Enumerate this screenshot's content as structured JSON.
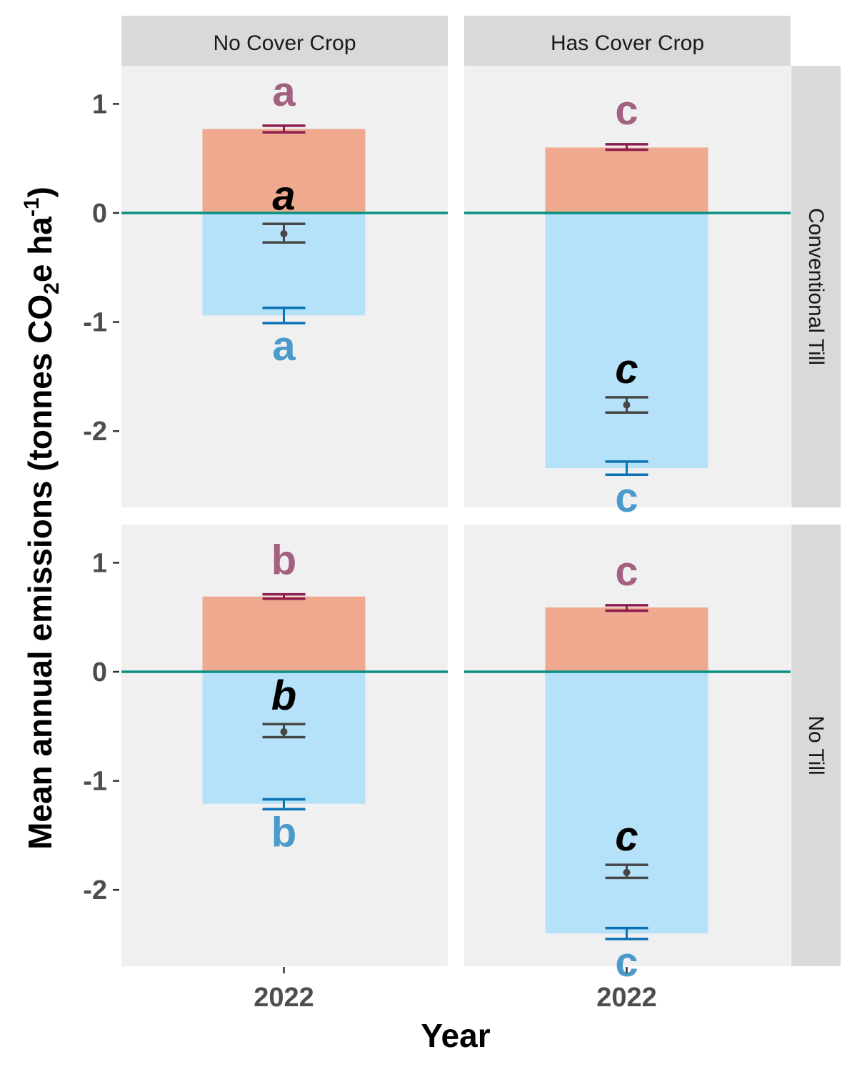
{
  "chart_data": {
    "type": "bar",
    "xlabel": "Year",
    "ylabel_parts": [
      "Mean annual emissions (tonnes CO",
      "2",
      "e ha",
      "-1",
      ")"
    ],
    "ylim": [
      -2.7,
      1.35
    ],
    "yticks": [
      -2,
      -1,
      0,
      1
    ],
    "ytick_labels": [
      "-2",
      "-1",
      "0",
      "1"
    ],
    "x_tick_label": "2022",
    "grid": false,
    "columns": [
      "No Cover Crop",
      "Has Cover Crop"
    ],
    "rows": [
      "Conventional Till",
      "No Till"
    ],
    "colors": {
      "emissions_bar": "#eea98f",
      "sequestration_bar": "#b5e2f8",
      "emissions_error": "#8b1e4f",
      "sequestration_error": "#0a72b5",
      "net_error": "#474747",
      "emissions_letter": "#a3607f",
      "sequestration_letter": "#4a9acb",
      "net_letter": "#000000",
      "zero_line": "#089080",
      "panel_bg": "#f0f0f0",
      "strip_bg": "#d9d9d9"
    },
    "panels": [
      {
        "column": "No Cover Crop",
        "row": "Conventional Till",
        "emissions": {
          "value": 0.77,
          "err_low": 0.74,
          "err_high": 0.8,
          "letter": "a"
        },
        "sequestration": {
          "value": -0.94,
          "err_low": -1.01,
          "err_high": -0.87,
          "letter": "a"
        },
        "net": {
          "value": -0.19,
          "err_low": -0.27,
          "err_high": -0.1,
          "letter": "a"
        }
      },
      {
        "column": "Has Cover Crop",
        "row": "Conventional Till",
        "emissions": {
          "value": 0.6,
          "err_low": 0.58,
          "err_high": 0.63,
          "letter": "c"
        },
        "sequestration": {
          "value": -2.34,
          "err_low": -2.4,
          "err_high": -2.28,
          "letter": "c"
        },
        "net": {
          "value": -1.76,
          "err_low": -1.83,
          "err_high": -1.69,
          "letter": "c"
        }
      },
      {
        "column": "No Cover Crop",
        "row": "No Till",
        "emissions": {
          "value": 0.69,
          "err_low": 0.67,
          "err_high": 0.71,
          "letter": "b"
        },
        "sequestration": {
          "value": -1.21,
          "err_low": -1.26,
          "err_high": -1.17,
          "letter": "b"
        },
        "net": {
          "value": -0.55,
          "err_low": -0.6,
          "err_high": -0.48,
          "letter": "b"
        }
      },
      {
        "column": "Has Cover Crop",
        "row": "No Till",
        "emissions": {
          "value": 0.59,
          "err_low": 0.56,
          "err_high": 0.61,
          "letter": "c"
        },
        "sequestration": {
          "value": -2.4,
          "err_low": -2.45,
          "err_high": -2.35,
          "letter": "c"
        },
        "net": {
          "value": -1.84,
          "err_low": -1.89,
          "err_high": -1.77,
          "letter": "c"
        }
      }
    ]
  }
}
